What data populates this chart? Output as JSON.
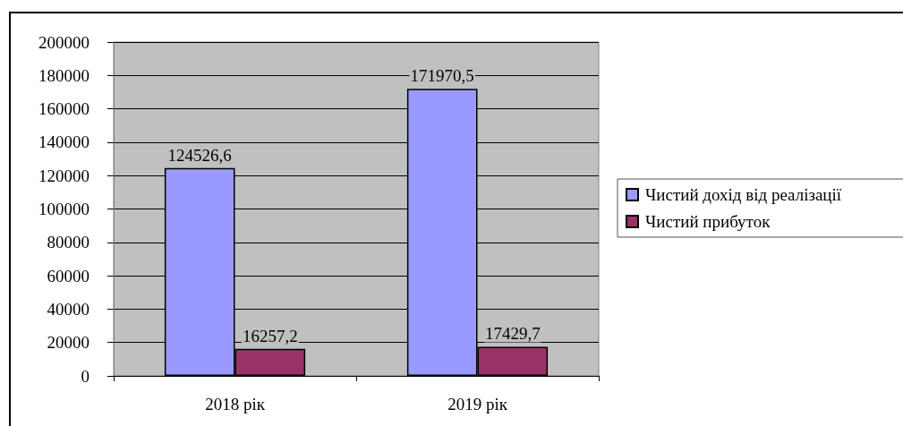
{
  "chart_data": {
    "type": "bar",
    "categories": [
      "2018 рік",
      "2019 рік"
    ],
    "series": [
      {
        "name": "Чистий дохід від реалізації",
        "color": "#9999ff",
        "values": [
          124526.6,
          171970.5
        ],
        "value_labels": [
          "124526,6",
          "171970,5"
        ]
      },
      {
        "name": "Чистий прибуток",
        "color": "#993366",
        "values": [
          16257.2,
          17429.7
        ],
        "value_labels": [
          "16257,2",
          "17429,7"
        ]
      }
    ],
    "ylim": [
      0,
      200000
    ],
    "yticks": [
      0,
      20000,
      40000,
      60000,
      80000,
      100000,
      120000,
      140000,
      160000,
      180000,
      200000
    ],
    "grid": "y",
    "legend": "right"
  }
}
